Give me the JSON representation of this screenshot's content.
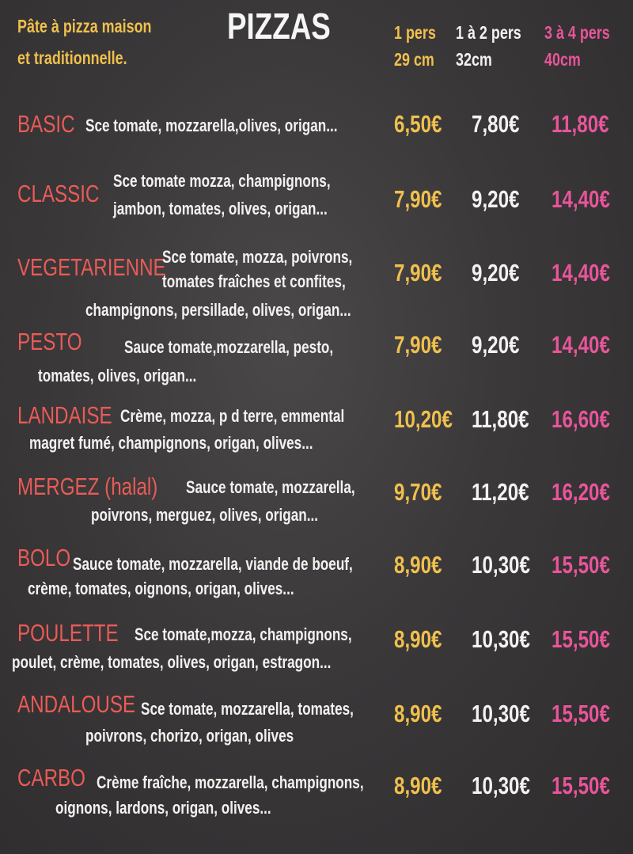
{
  "header": {
    "tagline": [
      "Pâte à pizza maison",
      "et traditionnelle."
    ],
    "title": "PIZZAS",
    "sizes": [
      {
        "label": "1 pers",
        "size": "29 cm"
      },
      {
        "label": "1 à 2 pers",
        "size": "32cm"
      },
      {
        "label": "3 à 4 pers",
        "size": "40cm"
      }
    ]
  },
  "colors": {
    "size1": "#f0c04e",
    "size2": "#f4f2f0",
    "size3": "#e8559a",
    "names": "#ea5b57",
    "background": "#3a3839"
  },
  "pizzas": [
    {
      "name": "BASIC",
      "description": [
        "Sce tomate, mozzarella,olives, origan..."
      ],
      "prices": [
        "6,50€",
        "7,80€",
        "11,80€"
      ]
    },
    {
      "name": "CLASSIC",
      "description": [
        "Sce tomate mozza, champignons,",
        "jambon, tomates, olives, origan..."
      ],
      "prices": [
        "7,90€",
        "9,20€",
        "14,40€"
      ]
    },
    {
      "name": "VEGETARIENNE",
      "description": [
        "Sce tomate, mozza, poivrons,",
        "tomates fraîches et confites,",
        "champignons, persillade, olives, origan..."
      ],
      "prices": [
        "7,90€",
        "9,20€",
        "14,40€"
      ]
    },
    {
      "name": "PESTO",
      "description": [
        "Sauce tomate,mozzarella, pesto,",
        "tomates, olives, origan..."
      ],
      "prices": [
        "7,90€",
        "9,20€",
        "14,40€"
      ]
    },
    {
      "name": "LANDAISE",
      "description": [
        "Crème, mozza, p d terre, emmental",
        "magret fumé, champignons, origan, olives..."
      ],
      "prices": [
        "10,20€",
        "11,80€",
        "16,60€"
      ]
    },
    {
      "name": "MERGEZ (halal)",
      "description": [
        "Sauce tomate, mozzarella,",
        "poivrons, merguez, olives, origan..."
      ],
      "prices": [
        "9,70€",
        "11,20€",
        "16,20€"
      ]
    },
    {
      "name": "BOLO",
      "description": [
        "Sauce tomate, mozzarella, viande de boeuf,",
        "crème, tomates, oignons, origan, olives..."
      ],
      "prices": [
        "8,90€",
        "10,30€",
        "15,50€"
      ]
    },
    {
      "name": "POULETTE",
      "description": [
        "Sce tomate,mozza, champignons,",
        "poulet, crème, tomates, olives, origan, estragon..."
      ],
      "prices": [
        "8,90€",
        "10,30€",
        "15,50€"
      ]
    },
    {
      "name": "ANDALOUSE",
      "description": [
        "Sce tomate, mozzarella, tomates,",
        "poivrons, chorizo, origan, olives"
      ],
      "prices": [
        "8,90€",
        "10,30€",
        "15,50€"
      ]
    },
    {
      "name": "CARBO",
      "description": [
        "Crème fraîche, mozzarella, champignons,",
        "oignons, lardons, origan, olives..."
      ],
      "prices": [
        "8,90€",
        "10,30€",
        "15,50€"
      ]
    }
  ]
}
